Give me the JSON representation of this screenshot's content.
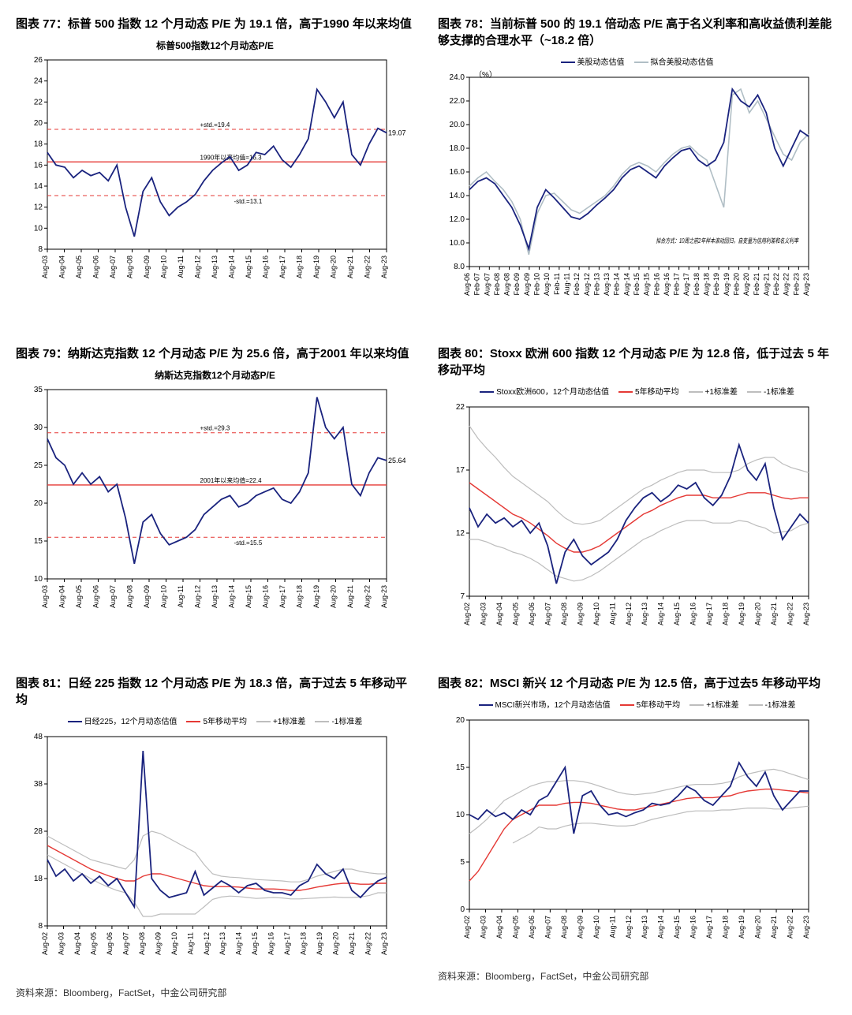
{
  "colors": {
    "main_line": "#1a237e",
    "fit_line": "#b0bec5",
    "mean_line": "#e53935",
    "std_line": "#e53935",
    "ma_line": "#e53935",
    "band_line": "#bdbdbd",
    "axis": "#000000",
    "grid": "#ffffff",
    "text": "#000000"
  },
  "source_text": "资料来源：Bloomberg，FactSet，中金公司研究部",
  "chart77": {
    "title": "图表 77：标普 500 指数 12 个月动态 P/E 为 19.1 倍，高于1990 年以来均值",
    "inner_title": "标普500指数12个月动态P/E",
    "type": "line",
    "ylim": [
      8,
      26
    ],
    "ytick_step": 2,
    "xlabels": [
      "Aug-03",
      "Aug-04",
      "Aug-05",
      "Aug-06",
      "Aug-07",
      "Aug-08",
      "Aug-09",
      "Aug-10",
      "Aug-11",
      "Aug-12",
      "Aug-13",
      "Aug-14",
      "Aug-15",
      "Aug-16",
      "Aug-17",
      "Aug-18",
      "Aug-19",
      "Aug-20",
      "Aug-21",
      "Aug-22",
      "Aug-23"
    ],
    "mean_value": 16.3,
    "mean_label": "1990年以来均值=16.3",
    "plus_std": 19.4,
    "plus_std_label": "+std.=19.4",
    "minus_std": 13.1,
    "minus_std_label": "-std.=13.1",
    "last_label": "19.07",
    "series": [
      17.2,
      16.0,
      15.8,
      14.8,
      15.5,
      15.0,
      15.3,
      14.5,
      16.0,
      12.0,
      9.2,
      13.5,
      14.8,
      12.5,
      11.2,
      12.0,
      12.5,
      13.2,
      14.5,
      15.5,
      16.2,
      16.8,
      15.5,
      16.0,
      17.2,
      17.0,
      17.8,
      16.5,
      15.8,
      17.0,
      18.5,
      23.2,
      22.0,
      20.5,
      22.0,
      17.0,
      16.0,
      18.0,
      19.5,
      19.07
    ]
  },
  "chart78": {
    "title": "图表 78：当前标普 500 的 19.1 倍动态 P/E 高于名义利率和高收益债利差能够支撑的合理水平（~18.2 倍）",
    "ylabel": "（%）",
    "type": "line",
    "ylim": [
      8,
      24
    ],
    "ytick_step": 2,
    "ytick_format": ".0",
    "legend": [
      {
        "label": "美股动态估值",
        "color": "#1a237e"
      },
      {
        "label": "拟合美股动态估值",
        "color": "#b0bec5"
      }
    ],
    "note": "拟合方式：10周之前2年样本滚动回归，自变量为信用利差和名义利率",
    "xlabels": [
      "Aug-06",
      "Feb-07",
      "Aug-07",
      "Feb-08",
      "Aug-08",
      "Feb-09",
      "Aug-09",
      "Feb-10",
      "Aug-10",
      "Feb-11",
      "Aug-11",
      "Feb-12",
      "Aug-12",
      "Feb-13",
      "Aug-13",
      "Feb-14",
      "Aug-14",
      "Feb-15",
      "Aug-15",
      "Feb-16",
      "Aug-16",
      "Feb-17",
      "Aug-17",
      "Feb-18",
      "Aug-18",
      "Feb-19",
      "Aug-19",
      "Feb-20",
      "Aug-20",
      "Feb-21",
      "Aug-21",
      "Feb-22",
      "Aug-22",
      "Feb-23",
      "Aug-23"
    ],
    "series_main": [
      14.5,
      15.2,
      15.5,
      15.0,
      14.0,
      13.0,
      11.5,
      9.5,
      13.0,
      14.5,
      13.8,
      13.0,
      12.2,
      12.0,
      12.5,
      13.2,
      13.8,
      14.5,
      15.5,
      16.2,
      16.5,
      16.0,
      15.5,
      16.5,
      17.2,
      17.8,
      18.0,
      17.0,
      16.5,
      17.0,
      18.5,
      23.0,
      22.0,
      21.5,
      22.5,
      21.0,
      18.0,
      16.5,
      18.0,
      19.5,
      19.0
    ],
    "series_fit": [
      14.8,
      15.5,
      16.0,
      15.2,
      14.5,
      13.5,
      12.0,
      9.0,
      12.5,
      14.0,
      14.2,
      13.5,
      12.8,
      12.5,
      13.0,
      13.5,
      14.0,
      14.8,
      15.8,
      16.5,
      16.8,
      16.5,
      16.0,
      16.8,
      17.5,
      18.0,
      18.2,
      17.5,
      17.0,
      15.0,
      13.0,
      22.5,
      23.0,
      21.0,
      22.0,
      20.5,
      19.0,
      17.5,
      17.0,
      18.5,
      19.2
    ]
  },
  "chart79": {
    "title": "图表 79：纳斯达克指数 12 个月动态 P/E 为 25.6 倍，高于2001 年以来均值",
    "inner_title": "纳斯达克指数12个月动态P/E",
    "type": "line",
    "ylim": [
      10,
      35
    ],
    "ytick_step": 5,
    "xlabels": [
      "Aug-03",
      "Aug-04",
      "Aug-05",
      "Aug-06",
      "Aug-07",
      "Aug-08",
      "Aug-09",
      "Aug-10",
      "Aug-11",
      "Aug-12",
      "Aug-13",
      "Aug-14",
      "Aug-15",
      "Aug-16",
      "Aug-17",
      "Aug-18",
      "Aug-19",
      "Aug-20",
      "Aug-21",
      "Aug-22",
      "Aug-23"
    ],
    "mean_value": 22.4,
    "mean_label": "2001年以来均值=22.4",
    "plus_std": 29.3,
    "plus_std_label": "+std.=29.3",
    "minus_std": 15.5,
    "minus_std_label": "-std.=15.5",
    "last_label": "25.64",
    "series": [
      28.5,
      26.0,
      25.0,
      22.5,
      24.0,
      22.5,
      23.5,
      21.5,
      22.5,
      18.0,
      12.0,
      17.5,
      18.5,
      16.0,
      14.5,
      15.0,
      15.5,
      16.5,
      18.5,
      19.5,
      20.5,
      21.0,
      19.5,
      20.0,
      21.0,
      21.5,
      22.0,
      20.5,
      20.0,
      21.5,
      24.0,
      34.0,
      30.0,
      28.5,
      30.0,
      22.5,
      21.0,
      24.0,
      26.0,
      25.64
    ]
  },
  "chart80": {
    "title": "图表 80：Stoxx 欧洲 600 指数 12 个月动态 P/E 为 12.8 倍，低于过去 5 年移动平均",
    "type": "line",
    "ylim": [
      7,
      22
    ],
    "ytick_step": 5,
    "legend": [
      {
        "label": "Stoxx欧洲600，12个月动态估值",
        "color": "#1a237e"
      },
      {
        "label": "5年移动平均",
        "color": "#e53935"
      },
      {
        "label": "+1标准差",
        "color": "#bdbdbd"
      },
      {
        "label": "-1标准差",
        "color": "#bdbdbd"
      }
    ],
    "xlabels": [
      "Aug-02",
      "Aug-03",
      "Aug-04",
      "Aug-05",
      "Aug-06",
      "Aug-07",
      "Aug-08",
      "Aug-09",
      "Aug-10",
      "Aug-11",
      "Aug-12",
      "Aug-13",
      "Aug-14",
      "Aug-15",
      "Aug-16",
      "Aug-17",
      "Aug-18",
      "Aug-19",
      "Aug-20",
      "Aug-21",
      "Aug-22",
      "Aug-23"
    ],
    "series_main": [
      14.0,
      12.5,
      13.5,
      12.8,
      13.2,
      12.5,
      13.0,
      12.0,
      12.8,
      11.0,
      8.0,
      10.5,
      11.5,
      10.2,
      9.5,
      10.0,
      10.5,
      11.5,
      13.0,
      14.0,
      14.8,
      15.2,
      14.5,
      15.0,
      15.8,
      15.5,
      16.0,
      14.8,
      14.2,
      15.0,
      16.5,
      19.0,
      17.0,
      16.2,
      17.5,
      14.0,
      11.5,
      12.5,
      13.5,
      12.8
    ],
    "series_ma": [
      16.0,
      15.5,
      15.0,
      14.5,
      14.0,
      13.5,
      13.2,
      12.8,
      12.3,
      11.8,
      11.2,
      10.8,
      10.5,
      10.5,
      10.7,
      11.0,
      11.5,
      12.0,
      12.5,
      13.0,
      13.5,
      13.8,
      14.2,
      14.5,
      14.8,
      15.0,
      15.0,
      15.0,
      14.8,
      14.8,
      14.8,
      15.0,
      15.2,
      15.2,
      15.2,
      15.0,
      14.8,
      14.7,
      14.8,
      14.8
    ],
    "series_up": [
      20.5,
      19.5,
      18.7,
      18.0,
      17.2,
      16.5,
      16.0,
      15.5,
      15.0,
      14.5,
      13.8,
      13.2,
      12.8,
      12.7,
      12.8,
      13.0,
      13.5,
      14.0,
      14.5,
      15.0,
      15.5,
      15.8,
      16.2,
      16.5,
      16.8,
      17.0,
      17.0,
      17.0,
      16.8,
      16.8,
      16.8,
      17.0,
      17.5,
      17.8,
      18.0,
      18.0,
      17.5,
      17.2,
      17.0,
      16.8
    ],
    "series_dn": [
      11.5,
      11.5,
      11.3,
      11.0,
      10.8,
      10.5,
      10.3,
      10.0,
      9.6,
      9.1,
      8.6,
      8.4,
      8.2,
      8.3,
      8.6,
      9.0,
      9.5,
      10.0,
      10.5,
      11.0,
      11.5,
      11.8,
      12.2,
      12.5,
      12.8,
      13.0,
      13.0,
      13.0,
      12.8,
      12.8,
      12.8,
      13.0,
      12.9,
      12.6,
      12.4,
      12.0,
      12.1,
      12.2,
      12.6,
      12.8
    ]
  },
  "chart81": {
    "title": "图表 81：日经 225 指数 12 个月动态 P/E 为 18.3 倍，高于过去 5 年移动平均",
    "type": "line",
    "ylim": [
      8,
      48
    ],
    "ytick_step": 10,
    "legend": [
      {
        "label": "日经225，12个月动态估值",
        "color": "#1a237e"
      },
      {
        "label": "5年移动平均",
        "color": "#e53935"
      },
      {
        "label": "+1标准差",
        "color": "#bdbdbd"
      },
      {
        "label": "-1标准差",
        "color": "#bdbdbd"
      }
    ],
    "xlabels": [
      "Aug-02",
      "Aug-03",
      "Aug-04",
      "Aug-05",
      "Aug-06",
      "Aug-07",
      "Aug-08",
      "Aug-09",
      "Aug-10",
      "Aug-11",
      "Aug-12",
      "Aug-13",
      "Aug-14",
      "Aug-15",
      "Aug-16",
      "Aug-17",
      "Aug-18",
      "Aug-19",
      "Aug-20",
      "Aug-21",
      "Aug-22",
      "Aug-23"
    ],
    "series_main": [
      22.0,
      18.5,
      20.0,
      17.5,
      19.0,
      17.0,
      18.5,
      16.5,
      18.0,
      15.0,
      12.0,
      45.0,
      18.0,
      15.5,
      14.0,
      14.5,
      15.0,
      19.5,
      14.5,
      16.0,
      17.5,
      16.5,
      15.0,
      16.5,
      17.0,
      15.5,
      15.0,
      15.0,
      14.5,
      16.5,
      17.5,
      21.0,
      19.0,
      18.0,
      20.0,
      15.5,
      14.0,
      16.0,
      17.5,
      18.3
    ],
    "series_ma": [
      25.0,
      24.0,
      23.0,
      22.0,
      21.0,
      20.0,
      19.3,
      18.6,
      18.0,
      17.5,
      17.5,
      18.5,
      19.0,
      19.0,
      18.5,
      18.0,
      17.5,
      17.0,
      16.5,
      16.3,
      16.3,
      16.3,
      16.2,
      16.0,
      15.8,
      15.8,
      15.8,
      15.7,
      15.5,
      15.5,
      15.8,
      16.2,
      16.5,
      16.8,
      17.0,
      17.0,
      16.8,
      16.8,
      17.0,
      17.0
    ],
    "series_up": [
      27.0,
      26.0,
      25.0,
      24.0,
      23.0,
      22.0,
      21.5,
      21.0,
      20.5,
      20.0,
      22.0,
      27.0,
      28.0,
      27.5,
      26.5,
      25.5,
      24.5,
      23.5,
      21.0,
      19.0,
      18.5,
      18.3,
      18.2,
      18.0,
      17.8,
      17.7,
      17.6,
      17.5,
      17.3,
      17.3,
      17.8,
      18.5,
      19.0,
      19.5,
      20.0,
      20.0,
      19.5,
      19.2,
      19.0,
      19.0
    ],
    "series_dn": [
      23.0,
      22.0,
      21.0,
      20.0,
      19.0,
      18.0,
      17.0,
      16.2,
      15.5,
      15.0,
      13.0,
      10.0,
      10.0,
      10.5,
      10.5,
      10.5,
      10.5,
      10.5,
      12.0,
      13.6,
      14.1,
      14.3,
      14.2,
      14.0,
      13.8,
      13.9,
      14.0,
      13.9,
      13.7,
      13.7,
      13.8,
      13.9,
      14.0,
      14.1,
      14.0,
      14.0,
      14.1,
      14.4,
      15.0,
      15.0
    ]
  },
  "chart82": {
    "title": "图表 82：MSCI 新兴 12 个月动态 P/E 为 12.5 倍，高于过去5 年移动平均",
    "type": "line",
    "ylim": [
      0,
      20
    ],
    "ytick_step": 5,
    "legend": [
      {
        "label": "MSCI新兴市场，12个月动态估值",
        "color": "#1a237e"
      },
      {
        "label": "5年移动平均",
        "color": "#e53935"
      },
      {
        "label": "+1标准差",
        "color": "#bdbdbd"
      },
      {
        "label": "-1标准差",
        "color": "#bdbdbd"
      }
    ],
    "xlabels": [
      "Aug-02",
      "Aug-03",
      "Aug-04",
      "Aug-05",
      "Aug-06",
      "Aug-07",
      "Aug-08",
      "Aug-09",
      "Aug-10",
      "Aug-11",
      "Aug-12",
      "Aug-13",
      "Aug-14",
      "Aug-15",
      "Aug-16",
      "Aug-17",
      "Aug-18",
      "Aug-19",
      "Aug-20",
      "Aug-21",
      "Aug-22",
      "Aug-23"
    ],
    "series_main": [
      10.0,
      9.5,
      10.5,
      9.8,
      10.2,
      9.5,
      10.5,
      10.0,
      11.5,
      12.0,
      13.5,
      15.0,
      8.0,
      12.0,
      12.5,
      11.0,
      10.0,
      10.2,
      9.8,
      10.2,
      10.5,
      11.2,
      11.0,
      11.2,
      12.0,
      13.0,
      12.5,
      11.5,
      11.0,
      12.0,
      13.0,
      15.5,
      14.0,
      13.0,
      14.5,
      12.0,
      10.5,
      11.5,
      12.5,
      12.5
    ],
    "series_ma": [
      3.0,
      4.0,
      5.5,
      7.0,
      8.5,
      9.5,
      10.0,
      10.5,
      11.0,
      11.0,
      11.0,
      11.2,
      11.3,
      11.3,
      11.2,
      11.0,
      10.8,
      10.6,
      10.5,
      10.5,
      10.7,
      10.9,
      11.1,
      11.3,
      11.5,
      11.7,
      11.8,
      11.8,
      11.8,
      11.9,
      12.0,
      12.3,
      12.5,
      12.6,
      12.7,
      12.7,
      12.6,
      12.5,
      12.4,
      12.3
    ],
    "series_up": [
      8.0,
      8.7,
      9.5,
      10.5,
      11.5,
      12.0,
      12.5,
      13.0,
      13.3,
      13.5,
      13.5,
      13.6,
      13.6,
      13.5,
      13.3,
      13.0,
      12.7,
      12.4,
      12.2,
      12.1,
      12.2,
      12.3,
      12.5,
      12.7,
      12.9,
      13.1,
      13.2,
      13.2,
      13.2,
      13.3,
      13.5,
      14.0,
      14.3,
      14.5,
      14.7,
      14.8,
      14.6,
      14.3,
      14.0,
      13.7
    ],
    "series_dn": [
      null,
      null,
      null,
      null,
      null,
      7.0,
      7.5,
      8.0,
      8.7,
      8.5,
      8.5,
      8.8,
      9.0,
      9.1,
      9.1,
      9.0,
      8.9,
      8.8,
      8.8,
      8.9,
      9.2,
      9.5,
      9.7,
      9.9,
      10.1,
      10.3,
      10.4,
      10.4,
      10.4,
      10.5,
      10.5,
      10.6,
      10.7,
      10.7,
      10.7,
      10.6,
      10.6,
      10.7,
      10.8,
      10.9
    ]
  }
}
